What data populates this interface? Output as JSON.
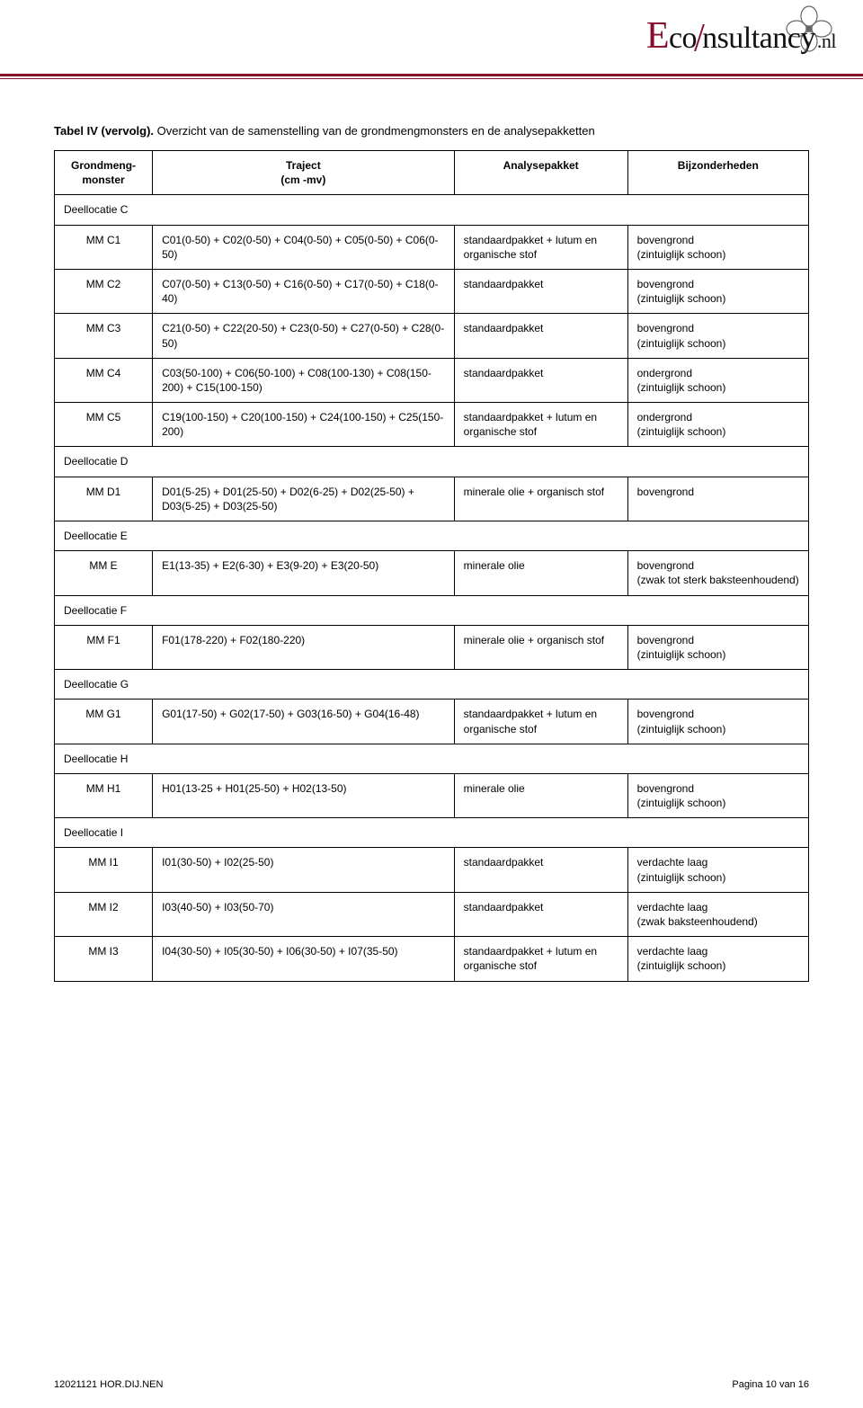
{
  "logo": {
    "brand_e": "E",
    "brand_co": "co",
    "brand_nsultancy": "nsultancy",
    "brand_nl": ".nl",
    "subtitle": ""
  },
  "title_bold": "Tabel IV (vervolg).",
  "title_rest": " Overzicht van de samenstelling van de grondmengmonsters en de analysepakketten",
  "columns": {
    "c1a": "Grondmeng-",
    "c1b": "monster",
    "c2a": "Traject",
    "c2b": "(cm -mv)",
    "c3": "Analysepakket",
    "c4": "Bijzonderheden"
  },
  "sections": [
    {
      "label": "Deellocatie C",
      "rows": [
        {
          "m": "MM C1",
          "traject": "C01(0-50) + C02(0-50) + C04(0-50) + C05(0-50) + C06(0-50)",
          "analyse": "standaardpakket + lutum en organische stof",
          "bijz": "bovengrond\n(zintuiglijk schoon)"
        },
        {
          "m": "MM C2",
          "traject": "C07(0-50) + C13(0-50) + C16(0-50) + C17(0-50) + C18(0-40)",
          "analyse": "standaardpakket",
          "bijz": "bovengrond\n(zintuiglijk schoon)"
        },
        {
          "m": "MM C3",
          "traject": "C21(0-50) + C22(20-50) + C23(0-50) + C27(0-50) + C28(0-50)",
          "analyse": "standaardpakket",
          "bijz": "bovengrond\n(zintuiglijk schoon)"
        },
        {
          "m": "MM C4",
          "traject": "C03(50-100) + C06(50-100) + C08(100-130) + C08(150-200) + C15(100-150)",
          "analyse": "standaardpakket",
          "bijz": "ondergrond\n(zintuiglijk schoon)"
        },
        {
          "m": "MM C5",
          "traject": "C19(100-150) + C20(100-150) + C24(100-150) + C25(150-200)",
          "analyse": "standaardpakket + lutum en organische stof",
          "bijz": "ondergrond\n(zintuiglijk schoon)"
        }
      ]
    },
    {
      "label": "Deellocatie D",
      "rows": [
        {
          "m": "MM D1",
          "traject": "D01(5-25) + D01(25-50) + D02(6-25) + D02(25-50) + D03(5-25) + D03(25-50)",
          "analyse": "minerale olie + organisch stof",
          "bijz": "bovengrond"
        }
      ]
    },
    {
      "label": "Deellocatie E",
      "rows": [
        {
          "m": "MM  E",
          "traject": "E1(13-35) + E2(6-30) + E3(9-20) + E3(20-50)",
          "analyse": "minerale olie",
          "bijz": "bovengrond\n(zwak tot sterk baksteenhoudend)"
        }
      ]
    },
    {
      "label": "Deellocatie F",
      "rows": [
        {
          "m": "MM F1",
          "traject": "F01(178-220) + F02(180-220)",
          "analyse": "minerale olie + organisch stof",
          "bijz": "bovengrond\n(zintuiglijk schoon)"
        }
      ]
    },
    {
      "label": "Deellocatie G",
      "rows": [
        {
          "m": "MM G1",
          "traject": "G01(17-50) + G02(17-50) + G03(16-50) + G04(16-48)",
          "analyse": "standaardpakket + lutum en organische stof",
          "bijz": "bovengrond\n(zintuiglijk schoon)"
        }
      ]
    },
    {
      "label": "Deellocatie H",
      "rows": [
        {
          "m": "MM H1",
          "traject": "H01(13-25 + H01(25-50) + H02(13-50)",
          "analyse": "minerale olie",
          "bijz": "bovengrond\n(zintuiglijk schoon)"
        }
      ]
    },
    {
      "label": "Deellocatie I",
      "rows": [
        {
          "m": "MM I1",
          "traject": "I01(30-50) + I02(25-50)",
          "analyse": "standaardpakket",
          "bijz": "verdachte laag\n(zintuiglijk schoon)"
        },
        {
          "m": "MM I2",
          "traject": "I03(40-50) + I03(50-70)",
          "analyse": "standaardpakket",
          "bijz": "verdachte laag\n(zwak baksteenhoudend)"
        },
        {
          "m": "MM I3",
          "traject": "I04(30-50) + I05(30-50) + I06(30-50) + I07(35-50)",
          "analyse": "standaardpakket + lutum en organische stof",
          "bijz": "verdachte laag\n(zintuiglijk schoon)"
        }
      ]
    }
  ],
  "footer": {
    "left": "12021121 HOR.DIJ.NEN",
    "right": "Pagina 10 van 16"
  }
}
